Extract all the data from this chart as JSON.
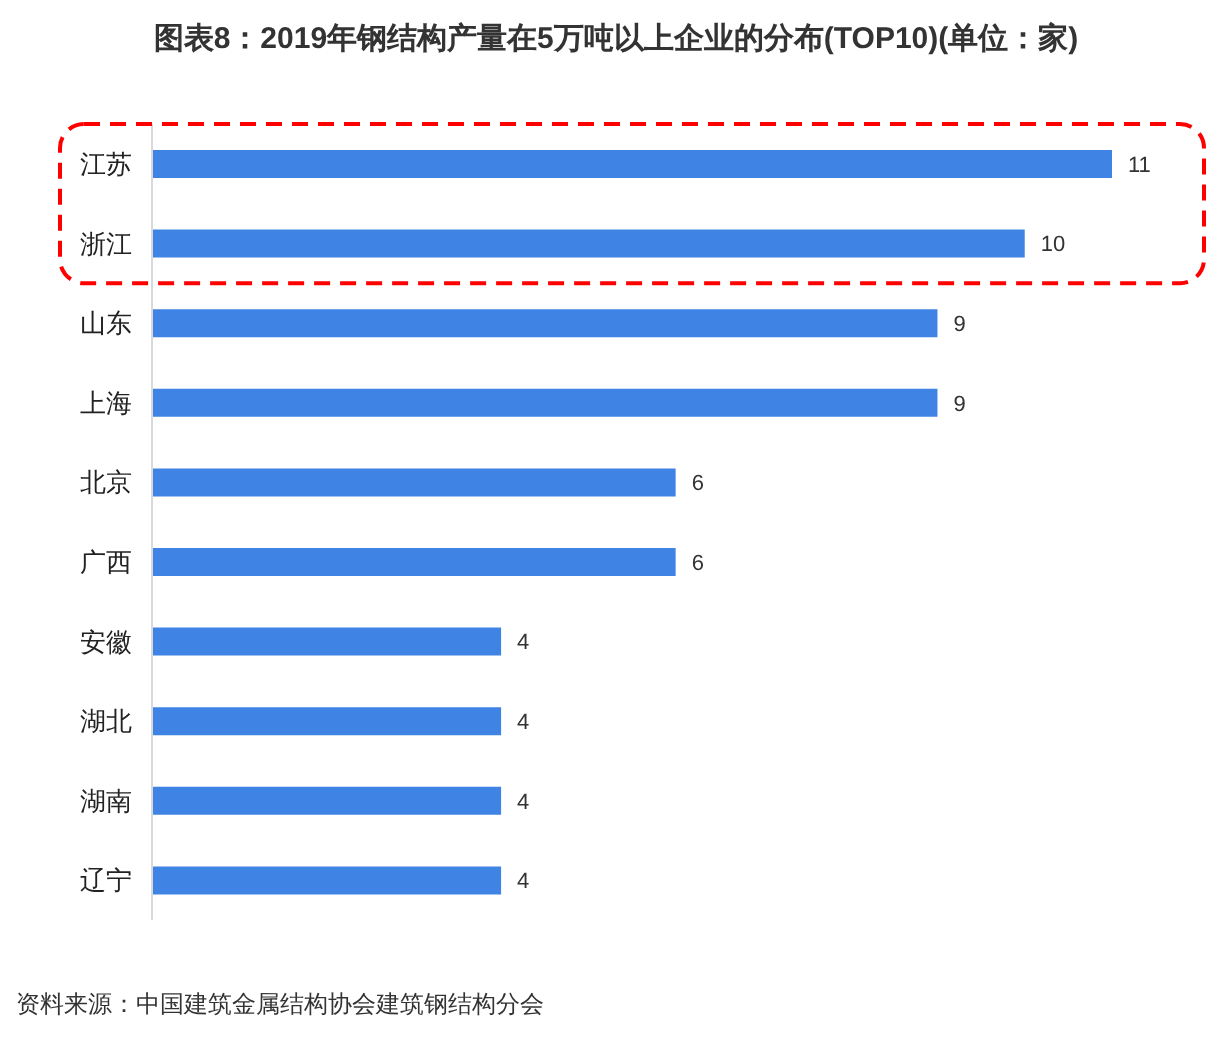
{
  "chart_data": {
    "type": "bar",
    "orientation": "horizontal",
    "title": "图表8：2019年钢结构产量在5万吨以上企业的分布(TOP10)(单位：家)",
    "categories": [
      "江苏",
      "浙江",
      "山东",
      "上海",
      "北京",
      "广西",
      "安徽",
      "湖北",
      "湖南",
      "辽宁"
    ],
    "values": [
      11,
      10,
      9,
      9,
      6,
      6,
      4,
      4,
      4,
      4
    ],
    "color": "#3f84e4",
    "data_labels": true,
    "tick_labels": "y",
    "annotations": [
      "资料来源：中国建筑金属结构协会建筑钢结构分会"
    ]
  }
}
